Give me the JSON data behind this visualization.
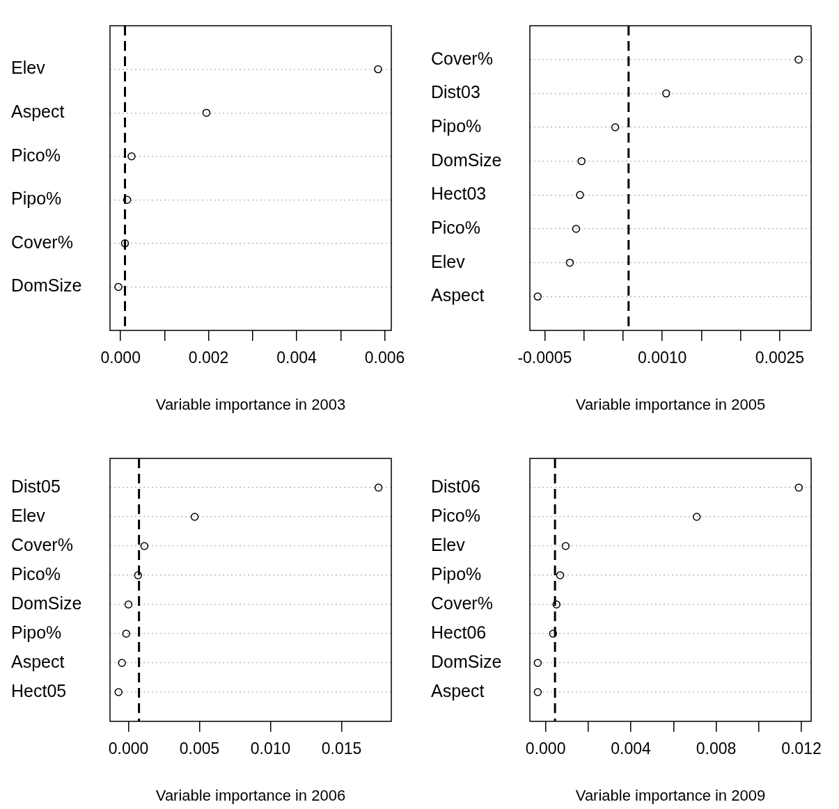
{
  "chart_data": [
    {
      "type": "scatter",
      "orientation": "horizontal",
      "categories": [
        "Elev",
        "Aspect",
        "Pico%",
        "Pipo%",
        "Cover%",
        "DomSize"
      ],
      "values": [
        0.00585,
        0.00195,
        0.00025,
        0.00015,
        0.0001,
        -5e-05
      ],
      "color": "#000000",
      "marker": "circle",
      "grid": "y",
      "legend": false,
      "xlabel": "Variable importance in 2003",
      "xlim": [
        -0.00024,
        0.00615
      ],
      "xticks": [
        {
          "value": 0,
          "label": "0.000"
        },
        {
          "value": 0.001,
          "label": null
        },
        {
          "value": 0.002,
          "label": "0.002"
        },
        {
          "value": 0.003,
          "label": null
        },
        {
          "value": 0.004,
          "label": "0.004"
        },
        {
          "value": 0.005,
          "label": null
        },
        {
          "value": 0.006,
          "label": "0.006"
        }
      ],
      "ref_lines": [
        {
          "axis": "x",
          "value": 0.0001,
          "line_style": "dashed",
          "color": "#000000"
        }
      ]
    },
    {
      "type": "scatter",
      "orientation": "horizontal",
      "categories": [
        "Cover%",
        "Dist03",
        "Pipo%",
        "DomSize",
        "Hect03",
        "Pico%",
        "Elev",
        "Aspect"
      ],
      "values": [
        0.00274,
        0.00105,
        0.0004,
        -3e-05,
        -5e-05,
        -0.0001,
        -0.00018,
        -0.00059
      ],
      "color": "#000000",
      "marker": "circle",
      "grid": "y",
      "legend": false,
      "xlabel": "Variable importance in 2005",
      "xlim": [
        -0.00069,
        0.0029
      ],
      "xticks": [
        {
          "value": -0.0005,
          "label": "-0.0005"
        },
        {
          "value": 0,
          "label": null
        },
        {
          "value": 0.0005,
          "label": null
        },
        {
          "value": 0.001,
          "label": "0.0010"
        },
        {
          "value": 0.0015,
          "label": null
        },
        {
          "value": 0.002,
          "label": null
        },
        {
          "value": 0.0025,
          "label": "0.0025"
        }
      ],
      "ref_lines": [
        {
          "axis": "x",
          "value": 0.00057,
          "line_style": "dashed",
          "color": "#000000"
        }
      ]
    },
    {
      "type": "scatter",
      "orientation": "horizontal",
      "categories": [
        "Dist05",
        "Elev",
        "Cover%",
        "Pico%",
        "DomSize",
        "Pipo%",
        "Aspect",
        "Hect05"
      ],
      "values": [
        0.0176,
        0.00466,
        0.00112,
        0.00067,
        0,
        -0.00016,
        -0.00046,
        -0.0007
      ],
      "color": "#000000",
      "marker": "circle",
      "grid": "y",
      "legend": false,
      "xlabel": "Variable importance in 2006",
      "xlim": [
        -0.0013,
        0.0185
      ],
      "xticks": [
        {
          "value": 0,
          "label": "0.000"
        },
        {
          "value": 0.005,
          "label": "0.005"
        },
        {
          "value": 0.01,
          "label": "0.010"
        },
        {
          "value": 0.015,
          "label": "0.015"
        }
      ],
      "ref_lines": [
        {
          "axis": "x",
          "value": 0.00074,
          "line_style": "dashed",
          "color": "#000000"
        }
      ]
    },
    {
      "type": "scatter",
      "orientation": "horizontal",
      "categories": [
        "Dist06",
        "Pico%",
        "Elev",
        "Pipo%",
        "Cover%",
        "Hect06",
        "DomSize",
        "Aspect"
      ],
      "values": [
        0.01188,
        0.00709,
        0.00094,
        0.00068,
        0.00051,
        0.00035,
        -0.00037,
        -0.00037
      ],
      "color": "#000000",
      "marker": "circle",
      "grid": "y",
      "legend": false,
      "xlabel": "Variable importance in 2009",
      "xlim": [
        -0.00074,
        0.01246
      ],
      "xticks": [
        {
          "value": 0,
          "label": "0.000"
        },
        {
          "value": 0.002,
          "label": null
        },
        {
          "value": 0.004,
          "label": "0.004"
        },
        {
          "value": 0.006,
          "label": null
        },
        {
          "value": 0.008,
          "label": "0.008"
        },
        {
          "value": 0.01,
          "label": null
        },
        {
          "value": 0.012,
          "label": "0.012"
        }
      ],
      "ref_lines": [
        {
          "axis": "x",
          "value": 0.00044,
          "line_style": "dashed",
          "color": "#000000"
        }
      ]
    }
  ]
}
